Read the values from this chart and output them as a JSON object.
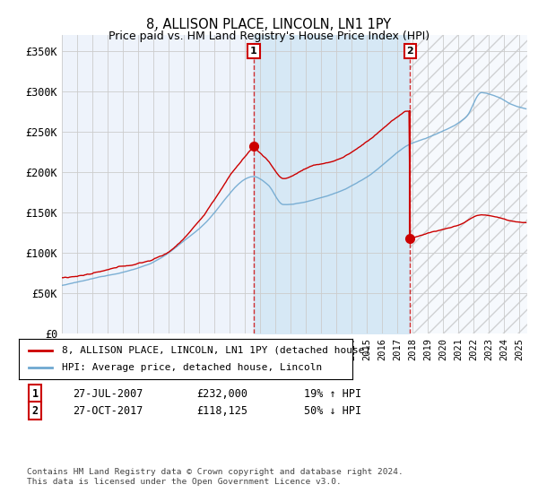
{
  "title": "8, ALLISON PLACE, LINCOLN, LN1 1PY",
  "subtitle": "Price paid vs. HM Land Registry's House Price Index (HPI)",
  "ylim": [
    0,
    370000
  ],
  "xlim_start": 1995,
  "xlim_end": 2025.5,
  "legend_line1": "8, ALLISON PLACE, LINCOLN, LN1 1PY (detached house)",
  "legend_line2": "HPI: Average price, detached house, Lincoln",
  "event1_date": 2007.57,
  "event1_label": "1",
  "event1_price": 232000,
  "event2_date": 2017.83,
  "event2_label": "2",
  "event2_price": 118125,
  "footer": "Contains HM Land Registry data © Crown copyright and database right 2024.\nThis data is licensed under the Open Government Licence v3.0.",
  "red_color": "#cc0000",
  "blue_color": "#6fa8d0",
  "fill_color": "#d6e8f5",
  "background_color": "#eef3fb",
  "grid_color": "#cccccc",
  "hatch_color": "#cccccc"
}
